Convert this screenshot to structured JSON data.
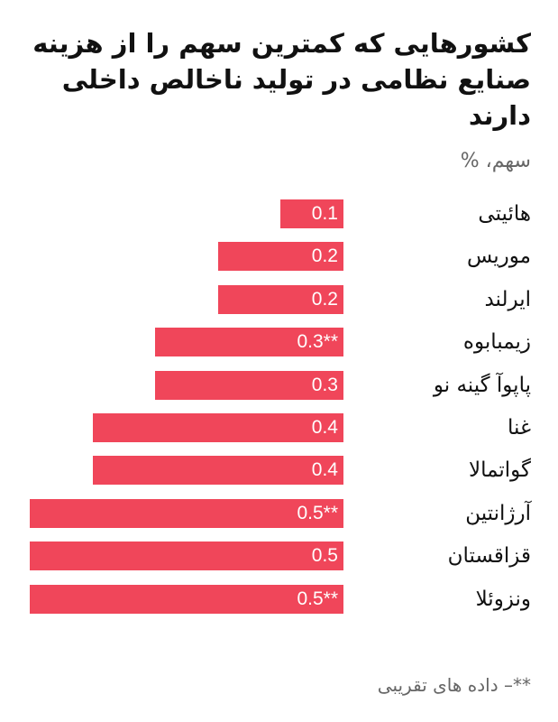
{
  "chart_data": {
    "type": "bar",
    "orientation": "horizontal",
    "title": "کشورهایی که کمترین سهم را از هزینه صنایع نظامی در تولید ناخالص داخلی دارند",
    "unit_label": "سهم، %",
    "categories": [
      "هائیتی",
      "موریس",
      "ایرلند",
      "زیمبابوه",
      "پاپوآ گینه نو",
      "غنا",
      "گواتمالا",
      "آرژانتین",
      "قزاقستان",
      "ونزوئلا"
    ],
    "values": [
      0.1,
      0.2,
      0.2,
      0.3,
      0.3,
      0.4,
      0.4,
      0.5,
      0.5,
      0.5
    ],
    "value_labels": [
      "0.1",
      "0.2",
      "0.2",
      "0.3**",
      "0.3",
      "0.4",
      "0.4",
      "0.5**",
      "0.5",
      "0.5**"
    ],
    "xlim": [
      0,
      0.5
    ],
    "bar_color": "#f0465a",
    "footnote": "**– داده های تقریبی"
  }
}
